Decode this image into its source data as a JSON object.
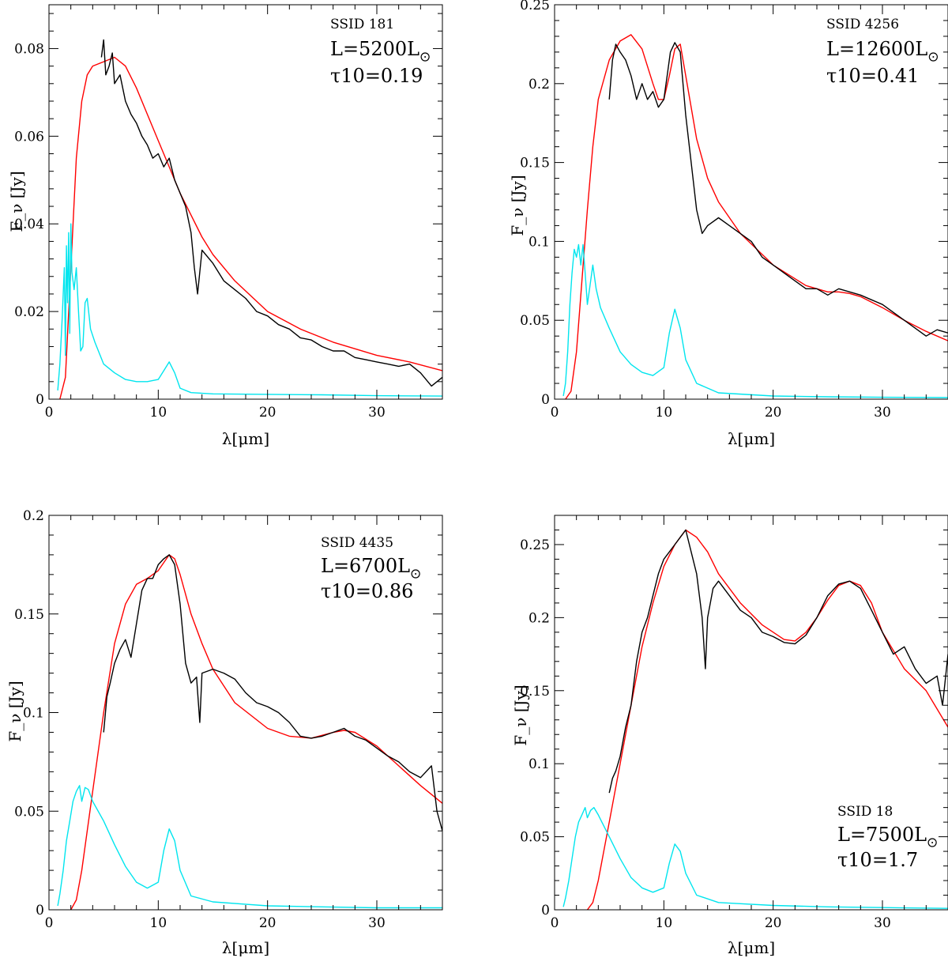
{
  "chart_data": [
    {
      "type": "line",
      "xlabel": "λ[μm]",
      "ylabel": "F_ν [Jy]",
      "xlim": [
        0,
        36
      ],
      "ylim": [
        0,
        0.09
      ],
      "xticks": [
        0,
        10,
        20,
        30
      ],
      "yticks": [
        0,
        0.02,
        0.04,
        0.06,
        0.08
      ],
      "ytick_labels": [
        "0",
        "0.02",
        "0.04",
        "0.06",
        "0.08"
      ],
      "annotation": {
        "ssid": "SSID 181",
        "lum": "L=5200L",
        "tau": "τ10=0.19"
      },
      "series": [
        {
          "color": "#ff0000",
          "x": [
            1,
            1.5,
            2,
            2.5,
            3,
            3.5,
            4,
            5,
            6,
            7,
            8,
            9,
            10,
            11,
            12,
            13,
            14,
            15,
            17,
            20,
            23,
            26,
            30,
            33,
            36
          ],
          "y": [
            0,
            0.005,
            0.03,
            0.055,
            0.068,
            0.074,
            0.076,
            0.077,
            0.078,
            0.076,
            0.071,
            0.065,
            0.059,
            0.053,
            0.047,
            0.042,
            0.037,
            0.033,
            0.027,
            0.02,
            0.016,
            0.013,
            0.01,
            0.0085,
            0.0065
          ]
        },
        {
          "color": "#000000",
          "x": [
            4.8,
            5,
            5.2,
            5.5,
            5.8,
            6,
            6.5,
            7,
            7.5,
            8,
            8.5,
            9,
            9.5,
            10,
            10.5,
            11,
            11.5,
            12,
            12.5,
            13,
            13.3,
            13.6,
            14,
            15,
            16,
            17,
            18,
            19,
            20,
            21,
            22,
            23,
            24,
            25,
            26,
            27,
            28,
            29,
            30,
            31,
            32,
            33,
            34,
            35,
            36
          ],
          "y": [
            0.078,
            0.082,
            0.074,
            0.076,
            0.079,
            0.072,
            0.074,
            0.068,
            0.065,
            0.063,
            0.06,
            0.058,
            0.055,
            0.056,
            0.053,
            0.055,
            0.05,
            0.047,
            0.044,
            0.038,
            0.03,
            0.024,
            0.034,
            0.031,
            0.027,
            0.025,
            0.023,
            0.02,
            0.019,
            0.017,
            0.016,
            0.014,
            0.0135,
            0.012,
            0.011,
            0.011,
            0.0095,
            0.009,
            0.0085,
            0.008,
            0.0075,
            0.008,
            0.006,
            0.003,
            0.005
          ]
        },
        {
          "color": "#00e5ee",
          "x": [
            0.8,
            1,
            1.2,
            1.4,
            1.5,
            1.6,
            1.7,
            1.8,
            1.9,
            2,
            2.1,
            2.3,
            2.5,
            2.7,
            2.9,
            3.1,
            3.3,
            3.5,
            3.8,
            4.2,
            5,
            6,
            7,
            8,
            9,
            10,
            10.5,
            11,
            11.5,
            12,
            13,
            15,
            20,
            25,
            30,
            36
          ],
          "y": [
            0.002,
            0.008,
            0.018,
            0.03,
            0.01,
            0.035,
            0.022,
            0.038,
            0.015,
            0.04,
            0.029,
            0.025,
            0.03,
            0.02,
            0.011,
            0.012,
            0.022,
            0.023,
            0.016,
            0.013,
            0.008,
            0.006,
            0.0045,
            0.004,
            0.004,
            0.0045,
            0.0065,
            0.0085,
            0.006,
            0.0025,
            0.0015,
            0.0012,
            0.0011,
            0.001,
            0.0008,
            0.0007
          ]
        }
      ]
    },
    {
      "type": "line",
      "xlabel": "λ[μm]",
      "ylabel": "F_ν [Jy]",
      "xlim": [
        0,
        36
      ],
      "ylim": [
        0,
        0.25
      ],
      "xticks": [
        0,
        10,
        20,
        30
      ],
      "yticks": [
        0,
        0.05,
        0.1,
        0.15,
        0.2,
        0.25
      ],
      "ytick_labels": [
        "0",
        "0.05",
        "0.1",
        "0.15",
        "0.2",
        "0.25"
      ],
      "annotation": {
        "ssid": "SSID 4256",
        "lum": "L=12600L",
        "tau": "τ10=0.41"
      },
      "series": [
        {
          "color": "#ff0000",
          "x": [
            1,
            1.5,
            2,
            2.5,
            3,
            3.5,
            4,
            5,
            6,
            7,
            8,
            9,
            9.5,
            10,
            10.5,
            11,
            11.5,
            12,
            13,
            14,
            15,
            17,
            20,
            23,
            25,
            26,
            27,
            28,
            30,
            32,
            34,
            36
          ],
          "y": [
            0,
            0.005,
            0.03,
            0.075,
            0.12,
            0.16,
            0.19,
            0.215,
            0.227,
            0.231,
            0.222,
            0.2,
            0.19,
            0.19,
            0.205,
            0.222,
            0.225,
            0.205,
            0.165,
            0.14,
            0.125,
            0.105,
            0.085,
            0.072,
            0.068,
            0.068,
            0.067,
            0.065,
            0.058,
            0.05,
            0.043,
            0.037
          ]
        },
        {
          "color": "#000000",
          "x": [
            5,
            5.3,
            5.6,
            6,
            6.5,
            7,
            7.5,
            8,
            8.5,
            9,
            9.5,
            10,
            10.3,
            10.6,
            11,
            11.5,
            12,
            12.5,
            13,
            13.5,
            14,
            15,
            16,
            17,
            18,
            19,
            20,
            21,
            22,
            23,
            24,
            25,
            26,
            27,
            28,
            29,
            30,
            31,
            32,
            33,
            34,
            35,
            36
          ],
          "y": [
            0.19,
            0.215,
            0.225,
            0.22,
            0.215,
            0.205,
            0.19,
            0.2,
            0.19,
            0.195,
            0.185,
            0.19,
            0.205,
            0.22,
            0.226,
            0.22,
            0.18,
            0.15,
            0.12,
            0.105,
            0.11,
            0.115,
            0.11,
            0.105,
            0.1,
            0.09,
            0.085,
            0.08,
            0.075,
            0.07,
            0.07,
            0.066,
            0.07,
            0.068,
            0.066,
            0.063,
            0.06,
            0.055,
            0.05,
            0.045,
            0.04,
            0.044,
            0.042
          ]
        },
        {
          "color": "#00e5ee",
          "x": [
            0.8,
            1,
            1.2,
            1.4,
            1.6,
            1.8,
            2,
            2.2,
            2.4,
            2.6,
            2.8,
            3,
            3.2,
            3.5,
            3.8,
            4.2,
            5,
            6,
            7,
            8,
            9,
            10,
            10.5,
            11,
            11.5,
            12,
            13,
            15,
            20,
            25,
            30,
            36
          ],
          "y": [
            0.002,
            0.01,
            0.03,
            0.06,
            0.08,
            0.095,
            0.09,
            0.098,
            0.085,
            0.098,
            0.08,
            0.06,
            0.07,
            0.085,
            0.07,
            0.058,
            0.045,
            0.03,
            0.022,
            0.017,
            0.015,
            0.02,
            0.042,
            0.057,
            0.045,
            0.025,
            0.01,
            0.004,
            0.002,
            0.0015,
            0.0012,
            0.001
          ]
        }
      ]
    },
    {
      "type": "line",
      "xlabel": "λ[μm]",
      "ylabel": "F_ν [Jy]",
      "xlim": [
        0,
        36
      ],
      "ylim": [
        0,
        0.2
      ],
      "xticks": [
        0,
        10,
        20,
        30
      ],
      "yticks": [
        0,
        0.05,
        0.1,
        0.15,
        0.2
      ],
      "ytick_labels": [
        "0",
        "0.05",
        "0.1",
        "0.15",
        "0.2"
      ],
      "annotation": {
        "ssid": "SSID 4435",
        "lum": "L=6700L",
        "tau": "τ10=0.86"
      },
      "series": [
        {
          "color": "#ff0000",
          "x": [
            2,
            2.5,
            3,
            3.5,
            4,
            5,
            6,
            7,
            8,
            9,
            10,
            11,
            11.5,
            12,
            13,
            14,
            15,
            17,
            20,
            22,
            24,
            26,
            27,
            28,
            30,
            32,
            34,
            36
          ],
          "y": [
            0,
            0.005,
            0.02,
            0.04,
            0.06,
            0.1,
            0.135,
            0.155,
            0.165,
            0.168,
            0.172,
            0.18,
            0.178,
            0.17,
            0.15,
            0.135,
            0.122,
            0.105,
            0.092,
            0.088,
            0.087,
            0.09,
            0.091,
            0.09,
            0.083,
            0.073,
            0.063,
            0.054
          ]
        },
        {
          "color": "#000000",
          "x": [
            5,
            5.3,
            5.6,
            6,
            6.5,
            7,
            7.5,
            8,
            8.5,
            9,
            9.5,
            10,
            10.5,
            11,
            11.5,
            12,
            12.5,
            13,
            13.5,
            13.8,
            14,
            15,
            16,
            17,
            18,
            19,
            20,
            21,
            22,
            23,
            24,
            25,
            26,
            27,
            28,
            29,
            30,
            31,
            32,
            33,
            34,
            35,
            35.5,
            36
          ],
          "y": [
            0.09,
            0.108,
            0.115,
            0.125,
            0.132,
            0.137,
            0.128,
            0.145,
            0.162,
            0.168,
            0.168,
            0.175,
            0.178,
            0.18,
            0.175,
            0.155,
            0.125,
            0.115,
            0.118,
            0.095,
            0.12,
            0.122,
            0.12,
            0.117,
            0.11,
            0.105,
            0.103,
            0.1,
            0.095,
            0.088,
            0.087,
            0.088,
            0.09,
            0.092,
            0.088,
            0.086,
            0.082,
            0.078,
            0.075,
            0.07,
            0.067,
            0.073,
            0.05,
            0.04
          ]
        },
        {
          "color": "#00e5ee",
          "x": [
            0.8,
            1,
            1.3,
            1.6,
            1.9,
            2.2,
            2.5,
            2.8,
            3,
            3.3,
            3.6,
            4,
            5,
            6,
            7,
            8,
            9,
            10,
            10.5,
            11,
            11.5,
            12,
            13,
            15,
            20,
            25,
            30,
            36
          ],
          "y": [
            0.002,
            0.008,
            0.02,
            0.035,
            0.045,
            0.055,
            0.06,
            0.063,
            0.055,
            0.062,
            0.061,
            0.055,
            0.045,
            0.033,
            0.022,
            0.014,
            0.011,
            0.014,
            0.03,
            0.041,
            0.035,
            0.02,
            0.007,
            0.004,
            0.002,
            0.0015,
            0.001,
            0.001
          ]
        }
      ]
    },
    {
      "type": "line",
      "xlabel": "λ[μm]",
      "ylabel": "F_ν [Jy]",
      "xlim": [
        0,
        36
      ],
      "ylim": [
        0,
        0.27
      ],
      "xticks": [
        0,
        10,
        20,
        30
      ],
      "yticks": [
        0,
        0.05,
        0.1,
        0.15,
        0.2,
        0.25
      ],
      "ytick_labels": [
        "0",
        "0.05",
        "0.1",
        "0.15",
        "0.2",
        "0.25"
      ],
      "annotation": {
        "ssid": "SSID 18",
        "lum": "L=7500L",
        "tau": "τ10=1.7"
      },
      "series": [
        {
          "color": "#ff0000",
          "x": [
            3,
            3.5,
            4,
            5,
            6,
            7,
            8,
            9,
            10,
            11,
            12,
            13,
            14,
            15,
            17,
            19,
            21,
            22,
            23,
            24,
            25,
            26,
            27,
            28,
            29,
            30,
            32,
            34,
            36
          ],
          "y": [
            0,
            0.005,
            0.02,
            0.06,
            0.1,
            0.14,
            0.18,
            0.21,
            0.235,
            0.25,
            0.26,
            0.255,
            0.245,
            0.23,
            0.21,
            0.195,
            0.185,
            0.184,
            0.19,
            0.2,
            0.212,
            0.222,
            0.225,
            0.222,
            0.21,
            0.19,
            0.165,
            0.15,
            0.125
          ]
        },
        {
          "color": "#000000",
          "x": [
            5,
            5.3,
            5.6,
            6,
            6.5,
            7,
            7.5,
            8,
            8.5,
            9,
            9.5,
            10,
            10.5,
            11,
            11.5,
            12,
            12.5,
            13,
            13.5,
            13.8,
            14,
            14.5,
            15,
            16,
            17,
            18,
            19,
            20,
            21,
            22,
            23,
            24,
            25,
            26,
            27,
            28,
            29,
            30,
            31,
            32,
            33,
            34,
            35,
            35.5,
            36
          ],
          "y": [
            0.08,
            0.09,
            0.095,
            0.105,
            0.125,
            0.14,
            0.17,
            0.19,
            0.2,
            0.215,
            0.23,
            0.24,
            0.245,
            0.25,
            0.255,
            0.26,
            0.245,
            0.23,
            0.2,
            0.165,
            0.2,
            0.22,
            0.225,
            0.215,
            0.205,
            0.2,
            0.19,
            0.187,
            0.183,
            0.182,
            0.188,
            0.2,
            0.215,
            0.223,
            0.225,
            0.22,
            0.205,
            0.19,
            0.175,
            0.18,
            0.165,
            0.155,
            0.16,
            0.14,
            0.175
          ]
        },
        {
          "color": "#00e5ee",
          "x": [
            0.8,
            1,
            1.3,
            1.6,
            1.9,
            2.2,
            2.5,
            2.8,
            3,
            3.3,
            3.6,
            4,
            5,
            6,
            7,
            8,
            9,
            10,
            10.5,
            11,
            11.5,
            12,
            13,
            15,
            20,
            25,
            30,
            36
          ],
          "y": [
            0.002,
            0.008,
            0.02,
            0.035,
            0.05,
            0.06,
            0.065,
            0.07,
            0.063,
            0.068,
            0.07,
            0.065,
            0.05,
            0.035,
            0.022,
            0.015,
            0.012,
            0.015,
            0.032,
            0.045,
            0.04,
            0.025,
            0.01,
            0.005,
            0.003,
            0.002,
            0.0015,
            0.001
          ]
        }
      ]
    }
  ]
}
